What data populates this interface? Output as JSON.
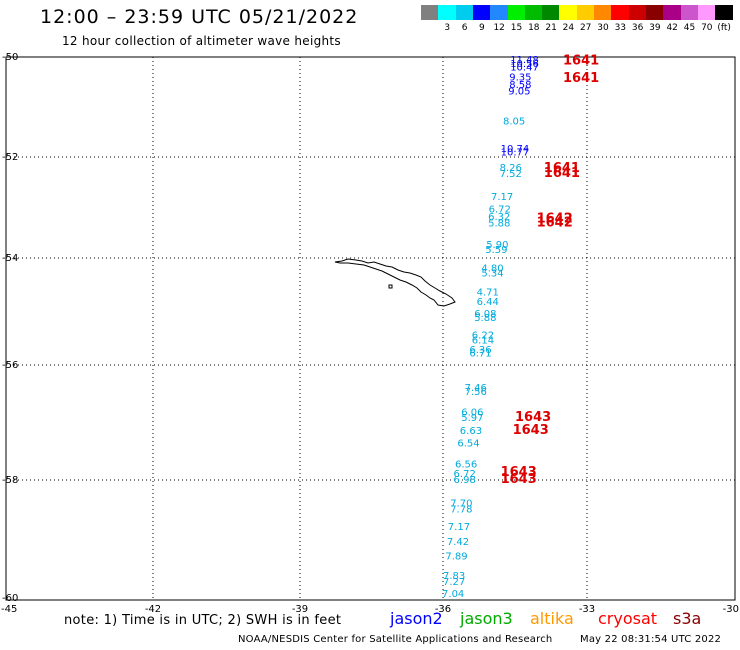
{
  "header": {
    "title": "12:00  –  23:59 UTC 05/21/2022",
    "subtitle": "12 hour collection of altimeter wave heights"
  },
  "legend": {
    "swatches": [
      {
        "color": "#808080",
        "label": ""
      },
      {
        "color": "#00ffff",
        "label": "3"
      },
      {
        "color": "#00ccee",
        "label": "6"
      },
      {
        "color": "#0000ff",
        "label": "9"
      },
      {
        "color": "#2288ff",
        "label": "12"
      },
      {
        "color": "#00ee00",
        "label": "15"
      },
      {
        "color": "#00bb00",
        "label": "18"
      },
      {
        "color": "#008800",
        "label": "21"
      },
      {
        "color": "#ffff00",
        "label": "24"
      },
      {
        "color": "#ffcc00",
        "label": "27"
      },
      {
        "color": "#ff8800",
        "label": "30"
      },
      {
        "color": "#ff0000",
        "label": "33"
      },
      {
        "color": "#cc0000",
        "label": "36"
      },
      {
        "color": "#880000",
        "label": "39"
      },
      {
        "color": "#aa0088",
        "label": "42"
      },
      {
        "color": "#cc55cc",
        "label": "45"
      },
      {
        "color": "#ff99ff",
        "label": "70"
      },
      {
        "color": "#000000",
        "label": "(ft)"
      }
    ]
  },
  "axes": {
    "lat_labels": [
      "-50",
      "-52",
      "-54",
      "-56",
      "-58",
      "-60"
    ],
    "lon_labels": [
      "-45",
      "-42",
      "-39",
      "-36",
      "-33",
      "-30"
    ]
  },
  "wave_labels": [
    {
      "text": "11.48",
      "color": "#0000ff",
      "lat": -50.12,
      "lon": -34.6
    },
    {
      "text": "10.56",
      "color": "#0000ff",
      "lat": -50.2,
      "lon": -34.6
    },
    {
      "text": "10.47",
      "color": "#0000ff",
      "lat": -50.27,
      "lon": -34.6
    },
    {
      "text": "9.35",
      "color": "#0000ff",
      "lat": -50.47,
      "lon": -34.62
    },
    {
      "text": "8.58",
      "color": "#0000ff",
      "lat": -50.62,
      "lon": -34.62
    },
    {
      "text": "9.05",
      "color": "#0000ff",
      "lat": -50.75,
      "lon": -34.64
    },
    {
      "text": "8.05",
      "color": "#00aadd",
      "lat": -51.35,
      "lon": -34.75
    },
    {
      "text": "10.74",
      "color": "#0000ff",
      "lat": -51.9,
      "lon": -34.8
    },
    {
      "text": "10.77",
      "color": "#0000ff",
      "lat": -51.97,
      "lon": -34.8
    },
    {
      "text": "8.26",
      "color": "#00aadd",
      "lat": -52.28,
      "lon": -34.82
    },
    {
      "text": "7.52",
      "color": "#00aadd",
      "lat": -52.4,
      "lon": -34.82
    },
    {
      "text": "7.17",
      "color": "#00aadd",
      "lat": -52.85,
      "lon": -35.0
    },
    {
      "text": "6.72",
      "color": "#00aadd",
      "lat": -53.1,
      "lon": -35.05
    },
    {
      "text": "6.32",
      "color": "#00aadd",
      "lat": -53.25,
      "lon": -35.06
    },
    {
      "text": "5.88",
      "color": "#00aadd",
      "lat": -53.38,
      "lon": -35.06
    },
    {
      "text": "5.90",
      "color": "#00aadd",
      "lat": -53.8,
      "lon": -35.1
    },
    {
      "text": "5.59",
      "color": "#00aadd",
      "lat": -53.9,
      "lon": -35.12
    },
    {
      "text": "4.80",
      "color": "#00aadd",
      "lat": -54.25,
      "lon": -35.2
    },
    {
      "text": "5.34",
      "color": "#00aadd",
      "lat": -54.35,
      "lon": -35.2
    },
    {
      "text": "4.71",
      "color": "#00aadd",
      "lat": -54.7,
      "lon": -35.3
    },
    {
      "text": "6.44",
      "color": "#00aadd",
      "lat": -54.88,
      "lon": -35.3
    },
    {
      "text": "6.08",
      "color": "#00aadd",
      "lat": -55.1,
      "lon": -35.35
    },
    {
      "text": "5.88",
      "color": "#00aadd",
      "lat": -55.18,
      "lon": -35.35
    },
    {
      "text": "6.22",
      "color": "#00aadd",
      "lat": -55.5,
      "lon": -35.4
    },
    {
      "text": "6.14",
      "color": "#00aadd",
      "lat": -55.6,
      "lon": -35.4
    },
    {
      "text": "6.36",
      "color": "#00aadd",
      "lat": -55.78,
      "lon": -35.45
    },
    {
      "text": "6.71",
      "color": "#00aadd",
      "lat": -55.84,
      "lon": -35.45
    },
    {
      "text": "7.46",
      "color": "#00aadd",
      "lat": -56.45,
      "lon": -35.55
    },
    {
      "text": "7.56",
      "color": "#00aadd",
      "lat": -56.52,
      "lon": -35.55
    },
    {
      "text": "6.06",
      "color": "#00aadd",
      "lat": -56.88,
      "lon": -35.62
    },
    {
      "text": "5.97",
      "color": "#00aadd",
      "lat": -56.97,
      "lon": -35.62
    },
    {
      "text": "6.63",
      "color": "#00aadd",
      "lat": -57.2,
      "lon": -35.65
    },
    {
      "text": "6.54",
      "color": "#00aadd",
      "lat": -57.42,
      "lon": -35.7
    },
    {
      "text": "6.56",
      "color": "#00aadd",
      "lat": -57.78,
      "lon": -35.75
    },
    {
      "text": "6.72",
      "color": "#00aadd",
      "lat": -57.95,
      "lon": -35.78
    },
    {
      "text": "6.98",
      "color": "#00aadd",
      "lat": -58.05,
      "lon": -35.78
    },
    {
      "text": "7.70",
      "color": "#00aadd",
      "lat": -58.45,
      "lon": -35.85
    },
    {
      "text": "7.78",
      "color": "#00aadd",
      "lat": -58.55,
      "lon": -35.85
    },
    {
      "text": "7.17",
      "color": "#00aadd",
      "lat": -58.85,
      "lon": -35.9
    },
    {
      "text": "7.42",
      "color": "#00aadd",
      "lat": -59.1,
      "lon": -35.92
    },
    {
      "text": "7.89",
      "color": "#00aadd",
      "lat": -59.35,
      "lon": -35.95
    },
    {
      "text": "7.83",
      "color": "#00aadd",
      "lat": -59.68,
      "lon": -36.0
    },
    {
      "text": "7.27",
      "color": "#00aadd",
      "lat": -59.78,
      "lon": -36.0
    },
    {
      "text": "7.04",
      "color": "#00aadd",
      "lat": -59.98,
      "lon": -36.02
    }
  ],
  "track_ids": [
    {
      "text": "1641",
      "color": "#dd0000",
      "lat": -50.15,
      "lon": -33.5
    },
    {
      "text": "1641",
      "color": "#dd0000",
      "lat": -50.5,
      "lon": -33.5
    },
    {
      "text": "1641",
      "color": "#dd0000",
      "lat": -52.3,
      "lon": -33.9
    },
    {
      "text": "1641",
      "color": "#dd0000",
      "lat": -52.4,
      "lon": -33.9
    },
    {
      "text": "1642",
      "color": "#dd0000",
      "lat": -53.3,
      "lon": -34.05
    },
    {
      "text": "1642",
      "color": "#dd0000",
      "lat": -53.38,
      "lon": -34.05
    },
    {
      "text": "1643",
      "color": "#dd0000",
      "lat": -56.97,
      "lon": -34.5
    },
    {
      "text": "1643",
      "color": "#dd0000",
      "lat": -57.2,
      "lon": -34.55
    },
    {
      "text": "1643",
      "color": "#dd0000",
      "lat": -57.93,
      "lon": -34.8
    },
    {
      "text": "1643",
      "color": "#dd0000",
      "lat": -58.05,
      "lon": -34.8
    }
  ],
  "footer": {
    "note": "note:  1) Time is in UTC;  2) SWH is in feet",
    "satellites": [
      {
        "name": "jason2",
        "color": "#0000ff"
      },
      {
        "name": "jason3",
        "color": "#00aa00"
      },
      {
        "name": "altika",
        "color": "#ff9900"
      },
      {
        "name": "cryosat",
        "color": "#ff0000"
      },
      {
        "name": "s3a",
        "color": "#880000"
      }
    ],
    "credit": "NOAA/NESDIS Center for Satellite Applications and Research",
    "timestamp": "May 22 08:31:54 UTC 2022"
  }
}
